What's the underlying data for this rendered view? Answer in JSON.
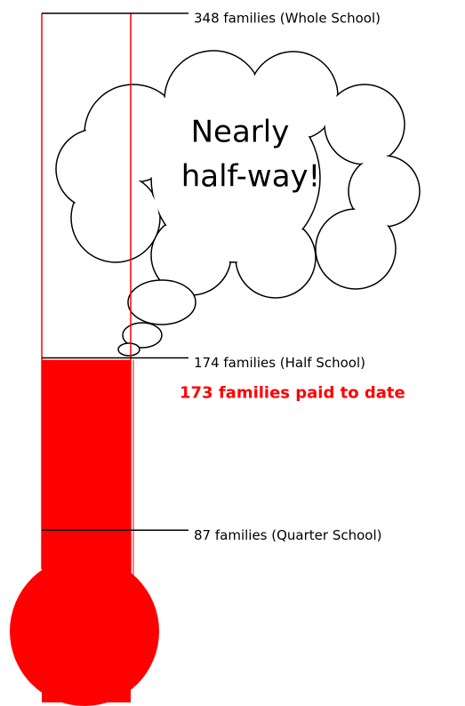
{
  "chart_data": {
    "type": "thermometer",
    "annotation": [
      "Nearly",
      "half-way!"
    ],
    "values": [
      173
    ],
    "value_labels": [
      "173 families paid to date"
    ],
    "color": "#ff0000",
    "ylim": [
      0,
      348
    ],
    "yticks": [
      {
        "value": 348,
        "label": "348 families (Whole School)"
      },
      {
        "value": 174,
        "label": "174 families (Half School)"
      },
      {
        "value": 87,
        "label": "87 families (Quarter School)"
      }
    ]
  }
}
